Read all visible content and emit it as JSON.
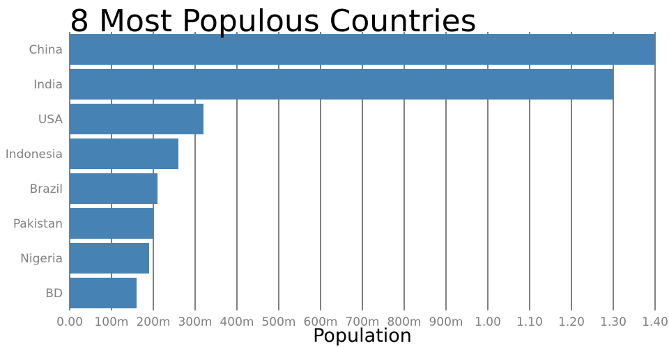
{
  "chart_data": {
    "type": "bar",
    "orientation": "horizontal",
    "title": "8 Most Populous Countries",
    "xlabel": "Population",
    "ylabel": "",
    "categories": [
      "China",
      "India",
      "USA",
      "Indonesia",
      "Brazil",
      "Pakistan",
      "Nigeria",
      "BD"
    ],
    "values": [
      1400000000,
      1300000000,
      320000000,
      260000000,
      210000000,
      200000000,
      190000000,
      160000000
    ],
    "xlim": [
      0,
      1400000000
    ],
    "x_ticks": [
      0,
      100000000,
      200000000,
      300000000,
      400000000,
      500000000,
      600000000,
      700000000,
      800000000,
      900000000,
      1000000000,
      1100000000,
      1200000000,
      1300000000,
      1400000000
    ],
    "x_tick_labels": [
      "0.00",
      "100m",
      "200m",
      "300m",
      "400m",
      "500m",
      "600m",
      "700m",
      "800m",
      "900m",
      "1.00",
      "1.10",
      "1.20",
      "1.30",
      "1.40"
    ],
    "grid": "vertical",
    "bar_color": "#4682b4"
  }
}
